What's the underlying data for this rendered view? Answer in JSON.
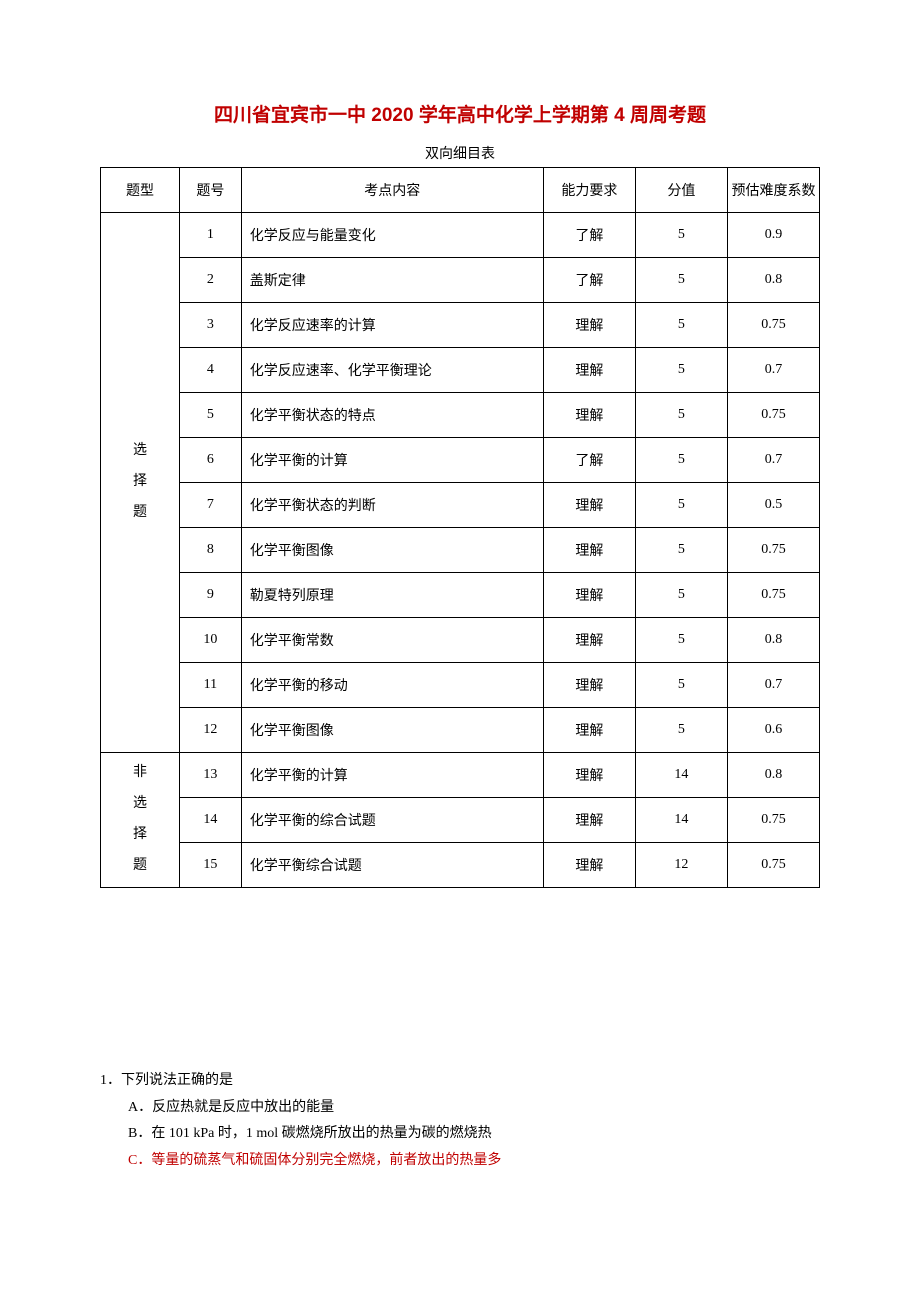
{
  "title": "四川省宜宾市一中 2020 学年高中化学上学期第 4 周周考题",
  "subtitle": "双向细目表",
  "table": {
    "headers": {
      "type": "题型",
      "num": "题号",
      "topic": "考点内容",
      "req": "能力要求",
      "score": "分值",
      "diff": "预估难度系数"
    },
    "group1_label_lines": [
      "选",
      "择",
      "题"
    ],
    "group1_rows": [
      {
        "num": "1",
        "topic": "化学反应与能量变化",
        "req": "了解",
        "score": "5",
        "diff": "0.9"
      },
      {
        "num": "2",
        "topic": "盖斯定律",
        "req": "了解",
        "score": "5",
        "diff": "0.8"
      },
      {
        "num": "3",
        "topic": "化学反应速率的计算",
        "req": "理解",
        "score": "5",
        "diff": "0.75"
      },
      {
        "num": "4",
        "topic": "化学反应速率、化学平衡理论",
        "req": "理解",
        "score": "5",
        "diff": "0.7"
      },
      {
        "num": "5",
        "topic": "化学平衡状态的特点",
        "req": "理解",
        "score": "5",
        "diff": "0.75"
      },
      {
        "num": "6",
        "topic": "化学平衡的计算",
        "req": "了解",
        "score": "5",
        "diff": "0.7"
      },
      {
        "num": "7",
        "topic": "化学平衡状态的判断",
        "req": "理解",
        "score": "5",
        "diff": "0.5"
      },
      {
        "num": "8",
        "topic": "化学平衡图像",
        "req": "理解",
        "score": "5",
        "diff": "0.75"
      },
      {
        "num": "9",
        "topic": "勒夏特列原理",
        "req": "理解",
        "score": "5",
        "diff": "0.75"
      },
      {
        "num": "10",
        "topic": "化学平衡常数",
        "req": "理解",
        "score": "5",
        "diff": "0.8"
      },
      {
        "num": "11",
        "topic": "化学平衡的移动",
        "req": "理解",
        "score": "5",
        "diff": "0.7"
      },
      {
        "num": "12",
        "topic": "化学平衡图像",
        "req": "理解",
        "score": "5",
        "diff": "0.6"
      }
    ],
    "group2_label_lines": [
      "非",
      "选",
      "择",
      "题"
    ],
    "group2_rows": [
      {
        "num": "13",
        "topic": "化学平衡的计算",
        "req": "理解",
        "score": "14",
        "diff": "0.8"
      },
      {
        "num": "14",
        "topic": "化学平衡的综合试题",
        "req": "理解",
        "score": "14",
        "diff": "0.75"
      },
      {
        "num": "15",
        "topic": "化学平衡综合试题",
        "req": "理解",
        "score": "12",
        "diff": "0.75"
      }
    ]
  },
  "question": {
    "stem": "1．下列说法正确的是",
    "opts": [
      {
        "text": "A．反应热就是反应中放出的能量",
        "red": false
      },
      {
        "text": "B．在 101 kPa 时，1 mol 碳燃烧所放出的热量为碳的燃烧热",
        "red": false
      },
      {
        "text": "C．等量的硫蒸气和硫固体分别完全燃烧，前者放出的热量多",
        "red": true
      }
    ]
  }
}
